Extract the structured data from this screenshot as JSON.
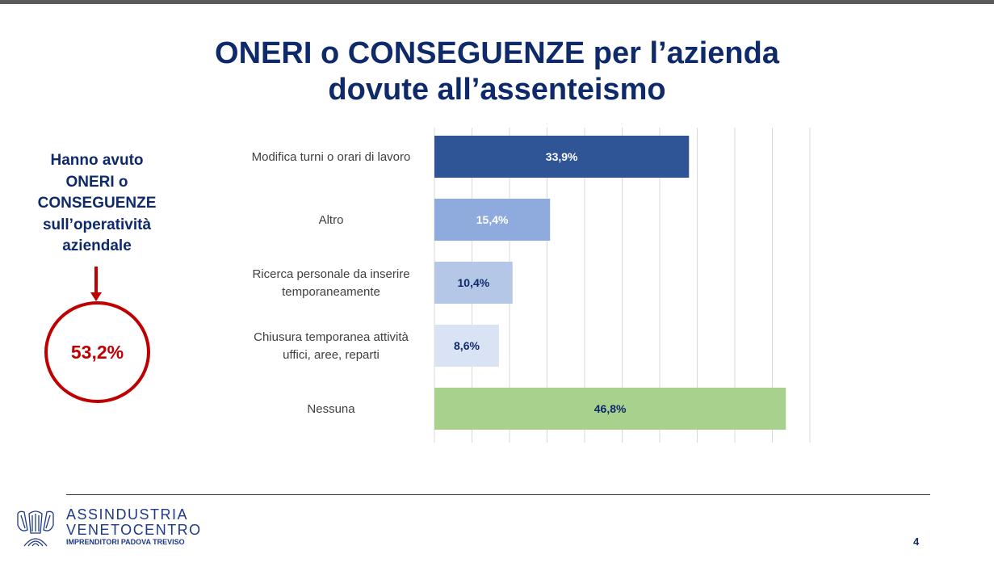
{
  "title": {
    "line1": "ONERI o CONSEGUENZE per l’azienda",
    "line2": "dovute all’assenteismo"
  },
  "side": {
    "lines": [
      "Hanno avuto",
      "ONERI o",
      "CONSEGUENZE",
      "sull’operatività",
      "aziendale"
    ],
    "value": "53,2%"
  },
  "chart_data": {
    "type": "bar",
    "orientation": "horizontal",
    "categories": [
      "Modifica turni o orari di lavoro",
      "Altro",
      "Ricerca personale da inserire temporaneamente",
      "Chiusura temporanea attività uffici, aree, reparti",
      "Nessuna"
    ],
    "category_lines": [
      [
        "Modifica turni o orari di lavoro"
      ],
      [
        "Altro"
      ],
      [
        "Ricerca personale da inserire",
        "temporaneamente"
      ],
      [
        "Chiusura temporanea attività",
        "uffici, aree, reparti"
      ],
      [
        "Nessuna"
      ]
    ],
    "values": [
      33.9,
      15.4,
      10.4,
      8.6,
      46.8
    ],
    "labels": [
      "33,9%",
      "15,4%",
      "10,4%",
      "8,6%",
      "46,8%"
    ],
    "colors": [
      "#2f5597",
      "#8faadc",
      "#b4c7e7",
      "#dae3f3",
      "#a9d18e"
    ],
    "label_colors": [
      "#ffffff",
      "#ffffff",
      "#0f2a6b",
      "#0f2a6b",
      "#0f2a6b"
    ],
    "xlim": [
      0,
      50
    ],
    "grid": true
  },
  "footer": {
    "brand1": "ASSINDUSTRIA",
    "brand2": "VENETOCENTRO",
    "tagline": "IMPRENDITORI PADOVA TREVISO",
    "page": "4"
  }
}
